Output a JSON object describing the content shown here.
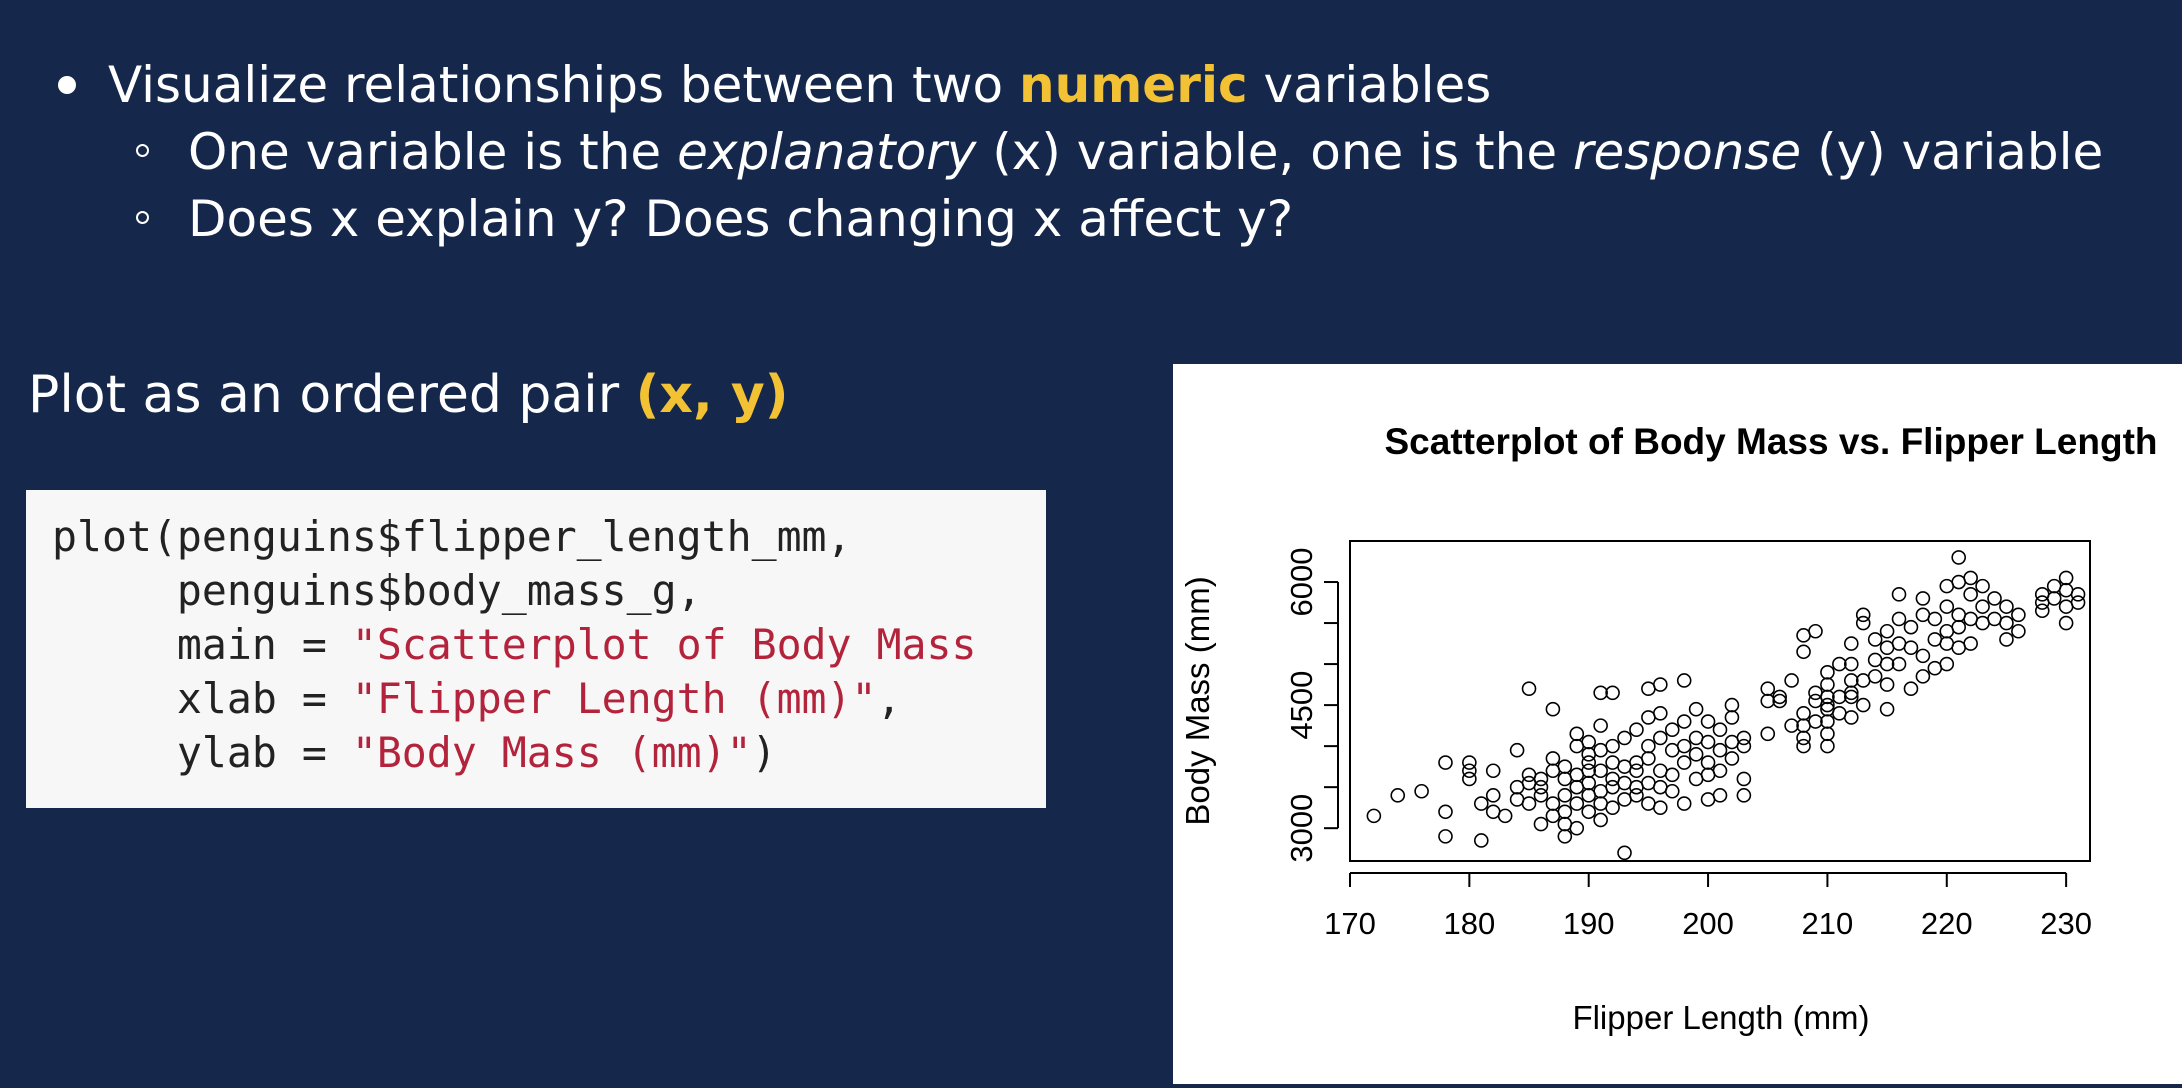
{
  "bullets": {
    "main": {
      "before": "Visualize relationships between two ",
      "highlight": "numeric",
      "after": " variables"
    },
    "sub1": {
      "p1": "One variable is the ",
      "e1": "explanatory",
      "p2": " (x) variable, one is the ",
      "e2": "response",
      "p3": " (y) variable"
    },
    "sub2": {
      "text": "Does x explain y? Does changing x affect y?"
    }
  },
  "ordered_pair": {
    "text": "Plot as an ordered pair ",
    "highlight": "(x, y)"
  },
  "code": {
    "line1": "plot(penguins$flipper_length_mm,",
    "line2": "     penguins$body_mass_g,",
    "line3_pre": "     main = ",
    "line3_str": "\"Scatterplot of Body Mass",
    "line4_pre": "     xlab = ",
    "line4_str": "\"Flipper Length (mm)\"",
    "line4_post": ",",
    "line5_pre": "     ylab = ",
    "line5_str": "\"Body Mass (mm)\"",
    "line5_post": ")"
  },
  "colors": {
    "background": "#15274a",
    "accent": "#f2c234",
    "string": "#b3243c"
  },
  "chart_data": {
    "type": "scatter",
    "title": "Scatterplot of Body Mass vs. Flipper Length",
    "xlabel": "Flipper Length (mm)",
    "ylabel": "Body Mass (mm)",
    "xlim": [
      170,
      232
    ],
    "ylim": [
      2600,
      6500
    ],
    "xticks": [
      170,
      180,
      190,
      200,
      210,
      220,
      230
    ],
    "yticks": [
      3000,
      3500,
      4000,
      4500,
      5000,
      5500,
      6000
    ],
    "ytick_labels": {
      "3000": "3000",
      "4500": "4500",
      "6000": "6000"
    },
    "grid": false,
    "points": [
      [
        172,
        3150
      ],
      [
        174,
        3400
      ],
      [
        176,
        3450
      ],
      [
        178,
        3200
      ],
      [
        178,
        2900
      ],
      [
        178,
        3800
      ],
      [
        180,
        3800
      ],
      [
        180,
        3600
      ],
      [
        180,
        3700
      ],
      [
        181,
        3300
      ],
      [
        181,
        2850
      ],
      [
        182,
        3700
      ],
      [
        182,
        3200
      ],
      [
        182,
        3400
      ],
      [
        183,
        3150
      ],
      [
        184,
        3350
      ],
      [
        184,
        3500
      ],
      [
        184,
        3950
      ],
      [
        185,
        3550
      ],
      [
        185,
        3650
      ],
      [
        185,
        3300
      ],
      [
        185,
        4700
      ],
      [
        186,
        3050
      ],
      [
        186,
        3500
      ],
      [
        186,
        3600
      ],
      [
        186,
        3400
      ],
      [
        187,
        3150
      ],
      [
        187,
        3700
      ],
      [
        187,
        3300
      ],
      [
        187,
        3850
      ],
      [
        187,
        4450
      ],
      [
        188,
        3050
      ],
      [
        188,
        2900
      ],
      [
        188,
        3400
      ],
      [
        188,
        3200
      ],
      [
        188,
        3600
      ],
      [
        188,
        3750
      ],
      [
        189,
        3000
      ],
      [
        189,
        3300
      ],
      [
        189,
        3500
      ],
      [
        189,
        3650
      ],
      [
        189,
        4000
      ],
      [
        189,
        4150
      ],
      [
        190,
        3200
      ],
      [
        190,
        3400
      ],
      [
        190,
        3550
      ],
      [
        190,
        3700
      ],
      [
        190,
        3800
      ],
      [
        190,
        3900
      ],
      [
        190,
        4050
      ],
      [
        191,
        3100
      ],
      [
        191,
        3300
      ],
      [
        191,
        3450
      ],
      [
        191,
        3700
      ],
      [
        191,
        3950
      ],
      [
        191,
        4250
      ],
      [
        191,
        4650
      ],
      [
        192,
        3250
      ],
      [
        192,
        3500
      ],
      [
        192,
        3600
      ],
      [
        192,
        3800
      ],
      [
        192,
        4000
      ],
      [
        192,
        4650
      ],
      [
        193,
        3350
      ],
      [
        193,
        2700
      ],
      [
        193,
        3550
      ],
      [
        193,
        3750
      ],
      [
        193,
        4100
      ],
      [
        194,
        3400
      ],
      [
        194,
        3700
      ],
      [
        194,
        3800
      ],
      [
        194,
        3500
      ],
      [
        194,
        4200
      ],
      [
        195,
        3300
      ],
      [
        195,
        3550
      ],
      [
        195,
        3850
      ],
      [
        195,
        4000
      ],
      [
        195,
        4350
      ],
      [
        195,
        4700
      ],
      [
        196,
        3250
      ],
      [
        196,
        3500
      ],
      [
        196,
        3700
      ],
      [
        196,
        4100
      ],
      [
        196,
        4400
      ],
      [
        196,
        4750
      ],
      [
        197,
        3450
      ],
      [
        197,
        3650
      ],
      [
        197,
        3950
      ],
      [
        197,
        4200
      ],
      [
        198,
        3300
      ],
      [
        198,
        3800
      ],
      [
        198,
        4000
      ],
      [
        198,
        4300
      ],
      [
        198,
        4800
      ],
      [
        199,
        3600
      ],
      [
        199,
        3900
      ],
      [
        199,
        4100
      ],
      [
        199,
        4450
      ],
      [
        200,
        3350
      ],
      [
        200,
        3650
      ],
      [
        200,
        3800
      ],
      [
        200,
        4050
      ],
      [
        200,
        4300
      ],
      [
        201,
        3400
      ],
      [
        201,
        3700
      ],
      [
        201,
        3950
      ],
      [
        201,
        4200
      ],
      [
        202,
        3850
      ],
      [
        202,
        4050
      ],
      [
        202,
        4350
      ],
      [
        202,
        4500
      ],
      [
        203,
        4000
      ],
      [
        203,
        3600
      ],
      [
        203,
        3400
      ],
      [
        203,
        4100
      ],
      [
        205,
        4150
      ],
      [
        205,
        4550
      ],
      [
        205,
        4700
      ],
      [
        206,
        4550
      ],
      [
        206,
        4600
      ],
      [
        207,
        4250
      ],
      [
        207,
        4800
      ],
      [
        208,
        4000
      ],
      [
        208,
        4100
      ],
      [
        208,
        5150
      ],
      [
        208,
        5350
      ],
      [
        208,
        4400
      ],
      [
        209,
        4300
      ],
      [
        209,
        4550
      ],
      [
        209,
        4650
      ],
      [
        209,
        5400
      ],
      [
        210,
        4000
      ],
      [
        210,
        4150
      ],
      [
        210,
        4300
      ],
      [
        210,
        4450
      ],
      [
        210,
        4600
      ],
      [
        210,
        4750
      ],
      [
        210,
        4900
      ],
      [
        211,
        4400
      ],
      [
        211,
        5000
      ],
      [
        211,
        4600
      ],
      [
        212,
        4350
      ],
      [
        212,
        4650
      ],
      [
        212,
        4800
      ],
      [
        212,
        5000
      ],
      [
        212,
        5250
      ],
      [
        213,
        4500
      ],
      [
        213,
        4800
      ],
      [
        213,
        5500
      ],
      [
        213,
        5600
      ],
      [
        214,
        4850
      ],
      [
        214,
        5050
      ],
      [
        214,
        5300
      ],
      [
        215,
        4450
      ],
      [
        215,
        4750
      ],
      [
        215,
        5000
      ],
      [
        215,
        5200
      ],
      [
        215,
        5400
      ],
      [
        216,
        5000
      ],
      [
        216,
        5250
      ],
      [
        216,
        5550
      ],
      [
        216,
        5850
      ],
      [
        217,
        4700
      ],
      [
        217,
        5200
      ],
      [
        217,
        5450
      ],
      [
        218,
        4850
      ],
      [
        218,
        5100
      ],
      [
        218,
        5600
      ],
      [
        218,
        5800
      ],
      [
        219,
        4950
      ],
      [
        219,
        5300
      ],
      [
        219,
        5550
      ],
      [
        220,
        5000
      ],
      [
        220,
        5250
      ],
      [
        220,
        5400
      ],
      [
        220,
        5700
      ],
      [
        220,
        5950
      ],
      [
        221,
        5200
      ],
      [
        221,
        5450
      ],
      [
        221,
        5600
      ],
      [
        221,
        6000
      ],
      [
        221,
        6300
      ],
      [
        222,
        5250
      ],
      [
        222,
        5550
      ],
      [
        222,
        5850
      ],
      [
        222,
        6050
      ],
      [
        223,
        5500
      ],
      [
        223,
        5700
      ],
      [
        223,
        5950
      ],
      [
        224,
        5550
      ],
      [
        224,
        5800
      ],
      [
        225,
        5300
      ],
      [
        225,
        5500
      ],
      [
        225,
        5700
      ],
      [
        226,
        5400
      ],
      [
        226,
        5600
      ],
      [
        228,
        5650
      ],
      [
        228,
        5750
      ],
      [
        228,
        5850
      ],
      [
        229,
        5800
      ],
      [
        229,
        5950
      ],
      [
        230,
        5700
      ],
      [
        230,
        5900
      ],
      [
        230,
        6050
      ],
      [
        230,
        5500
      ],
      [
        231,
        5750
      ],
      [
        231,
        5850
      ],
      [
        208,
        4250
      ],
      [
        210,
        4500
      ],
      [
        212,
        4600
      ]
    ]
  }
}
